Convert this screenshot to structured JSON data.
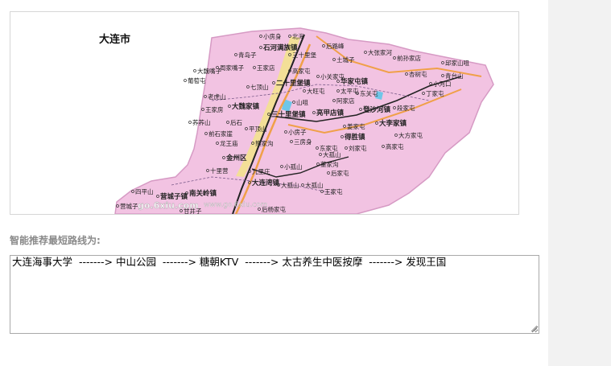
{
  "map": {
    "city_title": "大连市",
    "labels": [
      {
        "text": "小房身"
      },
      {
        "text": "北海"
      },
      {
        "text": "石河满族镇"
      },
      {
        "text": "后路峰"
      },
      {
        "text": "大张家河"
      },
      {
        "text": "青岛子"
      },
      {
        "text": "三十里堡"
      },
      {
        "text": "土城子"
      },
      {
        "text": "前孙家店"
      },
      {
        "text": "邱家山咀"
      },
      {
        "text": "大魏嘴子"
      },
      {
        "text": "周家嘴子"
      },
      {
        "text": "王家店"
      },
      {
        "text": "高家屯"
      },
      {
        "text": "杏树屯"
      },
      {
        "text": "小关家屯"
      },
      {
        "text": "青台山"
      },
      {
        "text": "葡萄屯"
      },
      {
        "text": "七顶山"
      },
      {
        "text": "二十里堡镇"
      },
      {
        "text": "华家屯镇"
      },
      {
        "text": "小河口"
      },
      {
        "text": "老虎山"
      },
      {
        "text": "大旺屯"
      },
      {
        "text": "太平屯"
      },
      {
        "text": "东关屯"
      },
      {
        "text": "丁家屯"
      },
      {
        "text": "大魏家镇"
      },
      {
        "text": "山咀"
      },
      {
        "text": "阿家店"
      },
      {
        "text": "王家房"
      },
      {
        "text": "三十里堡镇"
      },
      {
        "text": "亮甲店镇"
      },
      {
        "text": "登沙河镇"
      },
      {
        "text": "段家屯"
      },
      {
        "text": "荞荞山"
      },
      {
        "text": "后石"
      },
      {
        "text": "姜家屯"
      },
      {
        "text": "大李家镇"
      },
      {
        "text": "前石家崖"
      },
      {
        "text": "平顶山"
      },
      {
        "text": "小房子"
      },
      {
        "text": "得胜镇"
      },
      {
        "text": "龙王庙"
      },
      {
        "text": "熊家沟"
      },
      {
        "text": "三房身"
      },
      {
        "text": "大方家屯"
      },
      {
        "text": "金州区"
      },
      {
        "text": "东家屯"
      },
      {
        "text": "刘家屯"
      },
      {
        "text": "高家屯"
      },
      {
        "text": "大孤山"
      },
      {
        "text": "董家沟"
      },
      {
        "text": "十里营"
      },
      {
        "text": "小孤山"
      },
      {
        "text": "后家屯"
      },
      {
        "text": "九里庄"
      },
      {
        "text": "大连湾镇"
      },
      {
        "text": "大孤山"
      },
      {
        "text": "四平山"
      },
      {
        "text": "营城子镇"
      },
      {
        "text": "南关岭镇"
      },
      {
        "text": "王家屯"
      },
      {
        "text": "营城子"
      },
      {
        "text": "后杨家屯"
      },
      {
        "text": "甘井子"
      },
      {
        "text": "大孤山"
      }
    ],
    "watermarks": [
      "go.6xiu.com",
      "www.go.6xiu.com"
    ]
  },
  "route": {
    "label": "智能推荐最短路线为:",
    "text": "大连海事大学  -------> 中山公园  -------> 糖朝KTV  -------> 太古养生中医按摩  -------> 发现王国"
  },
  "colors": {
    "land": "#f2c3e2",
    "land_edge": "#d69ac4",
    "sea": "#ffffff",
    "rail": "#222222",
    "highway": "#f0a048",
    "water": "#6ec6e8",
    "sand": "#f3e28f"
  }
}
